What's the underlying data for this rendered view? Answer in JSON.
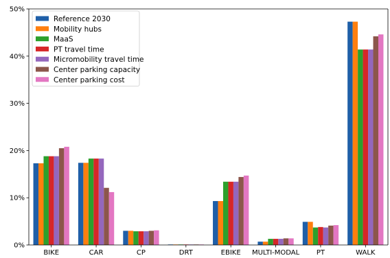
{
  "chart_data": {
    "type": "bar",
    "title": "",
    "xlabel": "",
    "ylabel": "",
    "ylim": [
      0,
      50
    ],
    "yticks": [
      0,
      10,
      20,
      30,
      40,
      50
    ],
    "ytick_format": "percent",
    "grid": false,
    "legend_position": "top-left",
    "categories": [
      "BIKE",
      "CAR",
      "CP",
      "DRT",
      "EBIKE",
      "MULTI-MODAL",
      "PT",
      "WALK"
    ],
    "series": [
      {
        "name": "Reference 2030",
        "color": "#1f5fa8",
        "values": [
          17.3,
          17.4,
          3.0,
          0.1,
          9.3,
          0.7,
          4.9,
          47.3
        ]
      },
      {
        "name": "Mobility hubs",
        "color": "#ff7f0e",
        "values": [
          17.3,
          17.4,
          3.0,
          0.1,
          9.3,
          0.7,
          4.9,
          47.3
        ]
      },
      {
        "name": "MaaS",
        "color": "#2ca02c",
        "values": [
          18.8,
          18.3,
          2.9,
          0.1,
          13.4,
          1.3,
          3.7,
          41.4
        ]
      },
      {
        "name": "PT travel time",
        "color": "#d62728",
        "values": [
          18.8,
          18.3,
          2.9,
          0.1,
          13.4,
          1.3,
          3.8,
          41.4
        ]
      },
      {
        "name": "Micromobility travel time",
        "color": "#9467bd",
        "values": [
          18.8,
          18.3,
          2.9,
          0.1,
          13.4,
          1.3,
          3.7,
          41.4
        ]
      },
      {
        "name": "Center parking capacity",
        "color": "#8c564b",
        "values": [
          20.5,
          12.1,
          3.0,
          0.1,
          14.4,
          1.4,
          4.1,
          44.2
        ]
      },
      {
        "name": "Center parking cost",
        "color": "#e377c2",
        "values": [
          20.8,
          11.2,
          3.1,
          0.1,
          14.7,
          1.4,
          4.2,
          44.6
        ]
      }
    ]
  }
}
